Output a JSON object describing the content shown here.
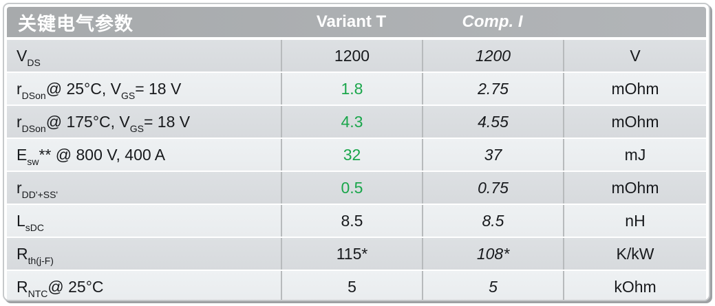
{
  "header": {
    "title": "关键电气参数",
    "variant_label": "Variant T",
    "comp_label": "Comp. I",
    "unit_label": ""
  },
  "colors": {
    "accent_green": "#1aa64b",
    "header_bg": "#abaeb1",
    "row_dark": "#dadde0",
    "row_light": "#edf0f2",
    "text": "#17191c"
  },
  "rows": [
    {
      "param": [
        {
          "text": "V"
        },
        {
          "text": "DS",
          "sub": true
        }
      ],
      "variant": "1200",
      "variant_green": false,
      "comp": "1200",
      "unit": "V"
    },
    {
      "param": [
        {
          "text": "r"
        },
        {
          "text": "DSon",
          "sub": true
        },
        {
          "text": " @ 25°C, V"
        },
        {
          "text": "GS",
          "sub": true
        },
        {
          "text": " = 18 V"
        }
      ],
      "variant": "1.8",
      "variant_green": true,
      "comp": "2.75",
      "unit": "mOhm"
    },
    {
      "param": [
        {
          "text": "r"
        },
        {
          "text": "DSon",
          "sub": true
        },
        {
          "text": " @ 175°C, V"
        },
        {
          "text": "GS",
          "sub": true
        },
        {
          "text": " = 18 V"
        }
      ],
      "variant": "4.3",
      "variant_green": true,
      "comp": "4.55",
      "unit": "mOhm"
    },
    {
      "param": [
        {
          "text": "E"
        },
        {
          "text": "sw",
          "sub": true
        },
        {
          "text": "** @ 800 V, 400 A"
        }
      ],
      "variant": "32",
      "variant_green": true,
      "comp": "37",
      "unit": "mJ"
    },
    {
      "param": [
        {
          "text": "r"
        },
        {
          "text": "DD'+SS'",
          "sub": true
        }
      ],
      "variant": "0.5",
      "variant_green": true,
      "comp": "0.75",
      "unit": "mOhm"
    },
    {
      "param": [
        {
          "text": "L"
        },
        {
          "text": "sDC",
          "sub": true
        }
      ],
      "variant": "8.5",
      "variant_green": false,
      "comp": "8.5",
      "unit": "nH"
    },
    {
      "param": [
        {
          "text": "R"
        },
        {
          "text": "th(j-F)",
          "sub": true
        }
      ],
      "variant": "115*",
      "variant_green": false,
      "comp": "108*",
      "unit": "K/kW"
    },
    {
      "param": [
        {
          "text": "R"
        },
        {
          "text": "NTC",
          "sub": true
        },
        {
          "text": " @ 25°C"
        }
      ],
      "variant": "5",
      "variant_green": false,
      "comp": "5",
      "unit": "kOhm"
    }
  ]
}
